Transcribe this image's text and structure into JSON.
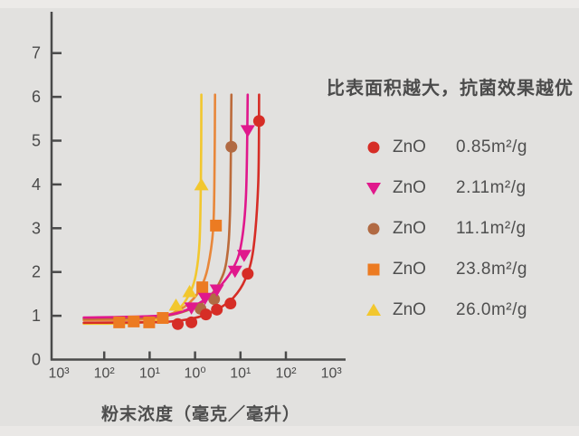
{
  "title": "比表面积越大，抗菌效果越优",
  "xlabel": "粉末浓度（毫克／毫升）",
  "colors": {
    "background": "#e2e1df",
    "axis": "#4a4a4a",
    "text": "#4b4b4b",
    "red": "#d62d26",
    "magenta": "#e0188c",
    "brown": "#b16a43",
    "orange": "#ec7b22",
    "yellow": "#f2c72e"
  },
  "legend": {
    "items": [
      {
        "material": "ZnO",
        "area": "0.85m²/g",
        "marker": "circle",
        "color": "#d62d26"
      },
      {
        "material": "ZnO",
        "area": "2.11m²/g",
        "marker": "triangle-down",
        "color": "#e0188c"
      },
      {
        "material": "ZnO",
        "area": "11.1m²/g",
        "marker": "circle",
        "color": "#b16a43"
      },
      {
        "material": "ZnO",
        "area": "23.8m²/g",
        "marker": "square",
        "color": "#ec7b22"
      },
      {
        "material": "ZnO",
        "area": "26.0m²/g",
        "marker": "triangle-up",
        "color": "#f2c72e"
      }
    ]
  },
  "chart_data": {
    "type": "line",
    "title": "比表面积越大，抗菌效果越优",
    "xlabel": "粉末浓度（毫克／毫升）",
    "ylabel": "",
    "grid": false,
    "legend_position": "right",
    "x_axis_note": "logarithmic tick labels left to right; x values below are tick-index positions (0 = leftmost 10³ label, 1 unit = one decade label step)",
    "x_tick_labels": [
      "10³",
      "10²",
      "10¹",
      "10⁰",
      "10¹",
      "10²",
      "10³"
    ],
    "x_ticks_with_marks": [
      1,
      2,
      3,
      4,
      5
    ],
    "y_ticks": [
      0,
      1,
      2,
      3,
      4,
      5,
      6,
      7
    ],
    "ylim": [
      0,
      7.9
    ],
    "series": [
      {
        "name": "ZnO 26.0m²/g",
        "color": "#f2c72e",
        "marker": "triangle-up",
        "marker_color": "#f2c72e",
        "curve": [
          [
            0.55,
            0.82
          ],
          [
            1.6,
            0.83
          ],
          [
            2.1,
            0.9
          ],
          [
            2.45,
            1.02
          ],
          [
            2.7,
            1.22
          ],
          [
            2.9,
            1.55
          ],
          [
            3.02,
            1.95
          ],
          [
            3.1,
            2.7
          ],
          [
            3.13,
            4.2
          ],
          [
            3.14,
            6.05
          ]
        ],
        "points": [
          [
            2.58,
            1.24
          ],
          [
            2.88,
            1.55
          ],
          [
            3.14,
            3.99
          ]
        ]
      },
      {
        "name": "ZnO 23.8m²/g",
        "color": "#e8873a",
        "marker": "square",
        "marker_color": "#ec7b22",
        "curve": [
          [
            0.55,
            0.9
          ],
          [
            1.7,
            0.91
          ],
          [
            2.2,
            0.97
          ],
          [
            2.6,
            1.1
          ],
          [
            2.9,
            1.32
          ],
          [
            3.12,
            1.62
          ],
          [
            3.28,
            2.1
          ],
          [
            3.4,
            3.0
          ],
          [
            3.43,
            4.5
          ],
          [
            3.44,
            6.05
          ]
        ],
        "points": [
          [
            1.33,
            0.85
          ],
          [
            1.65,
            0.87
          ],
          [
            1.99,
            0.85
          ],
          [
            2.29,
            0.95
          ],
          [
            3.16,
            1.65
          ],
          [
            3.46,
            3.06
          ]
        ]
      },
      {
        "name": "ZnO 11.1m²/g",
        "color": "#bc6b3b",
        "marker": "circle",
        "marker_color": "#b16a43",
        "curve": [
          [
            0.55,
            0.93
          ],
          [
            2.0,
            0.96
          ],
          [
            2.6,
            1.05
          ],
          [
            3.0,
            1.2
          ],
          [
            3.3,
            1.42
          ],
          [
            3.55,
            1.78
          ],
          [
            3.7,
            2.3
          ],
          [
            3.77,
            3.4
          ],
          [
            3.8,
            6.05
          ]
        ],
        "points": [
          [
            3.12,
            1.16
          ],
          [
            3.42,
            1.38
          ],
          [
            3.8,
            4.86
          ]
        ]
      },
      {
        "name": "ZnO 2.11m²/g",
        "color": "#e0188c",
        "marker": "triangle-down",
        "marker_color": "#e0188c",
        "curve": [
          [
            0.55,
            0.96
          ],
          [
            2.2,
            1.0
          ],
          [
            2.8,
            1.13
          ],
          [
            3.2,
            1.36
          ],
          [
            3.5,
            1.62
          ],
          [
            3.8,
            2.02
          ],
          [
            4.0,
            2.55
          ],
          [
            4.12,
            3.7
          ],
          [
            4.16,
            6.05
          ]
        ],
        "points": [
          [
            2.92,
            1.18
          ],
          [
            3.22,
            1.4
          ],
          [
            3.48,
            1.59
          ],
          [
            3.88,
            2.02
          ],
          [
            4.08,
            2.38
          ],
          [
            4.16,
            5.23
          ]
        ]
      },
      {
        "name": "ZnO 0.85m²/g",
        "color": "#d62d26",
        "marker": "circle",
        "marker_color": "#d62d26",
        "curve": [
          [
            0.55,
            0.84
          ],
          [
            2.3,
            0.86
          ],
          [
            2.9,
            0.93
          ],
          [
            3.25,
            1.03
          ],
          [
            3.55,
            1.18
          ],
          [
            3.85,
            1.42
          ],
          [
            4.1,
            1.82
          ],
          [
            4.28,
            2.5
          ],
          [
            4.39,
            4.0
          ],
          [
            4.41,
            6.05
          ]
        ],
        "points": [
          [
            2.62,
            0.81
          ],
          [
            2.92,
            0.85
          ],
          [
            3.24,
            1.03
          ],
          [
            3.48,
            1.14
          ],
          [
            3.78,
            1.28
          ],
          [
            4.16,
            1.96
          ],
          [
            4.41,
            5.45
          ]
        ]
      }
    ]
  }
}
